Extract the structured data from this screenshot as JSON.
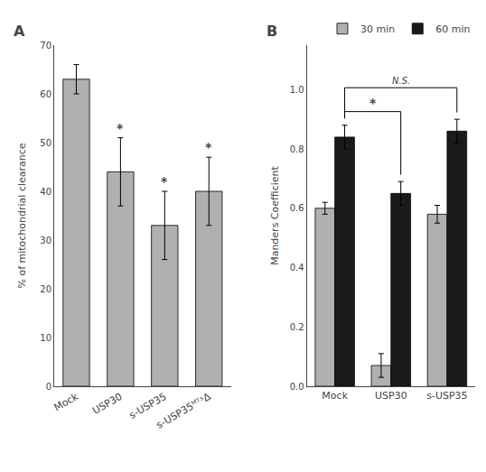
{
  "chart_data": [
    {
      "type": "bar",
      "title": "A",
      "categories": [
        "Mock",
        "USP30",
        "s-USP35",
        "s-USP35ᴹᵀˢΔ"
      ],
      "values": [
        63,
        44,
        33,
        40
      ],
      "errors": [
        3,
        7,
        7,
        7
      ],
      "color": "#b0b0b0",
      "ylabel": "% of mitochondrial clearance",
      "ylim": [
        0,
        70
      ],
      "yticks": [
        0,
        10,
        20,
        30,
        40,
        50,
        60,
        70
      ],
      "grid": false,
      "annotations": [
        {
          "text": "*",
          "category": "USP30"
        },
        {
          "text": "*",
          "category": "s-USP35"
        },
        {
          "text": "*",
          "category": "s-USP35ᴹᵀˢΔ"
        }
      ]
    },
    {
      "type": "bar",
      "title": "B",
      "categories": [
        "Mock",
        "USP30",
        "s-USP35"
      ],
      "series": [
        {
          "name": "30 min",
          "color": "#b0b0b0",
          "values": [
            0.6,
            0.07,
            0.58
          ],
          "errors": [
            0.02,
            0.04,
            0.03
          ]
        },
        {
          "name": "60 min",
          "color": "#1a1a1a",
          "values": [
            0.84,
            0.65,
            0.86
          ],
          "errors": [
            0.04,
            0.04,
            0.04
          ]
        }
      ],
      "ylabel": "Manders Coefficient",
      "ylim": [
        0,
        1.15
      ],
      "yticks": [
        {
          "value": 0,
          "label": "0.0"
        },
        0.2,
        0.4,
        0.6,
        0.8,
        {
          "value": 1,
          "label": "1.0"
        }
      ],
      "grid": false,
      "legend": "top",
      "annotations": [
        {
          "text": "*",
          "from": "Mock",
          "to": "USP30",
          "series": "60 min"
        },
        {
          "text": "N.S.",
          "from": "Mock",
          "to": "s-USP35",
          "series": "60 min"
        }
      ]
    }
  ]
}
